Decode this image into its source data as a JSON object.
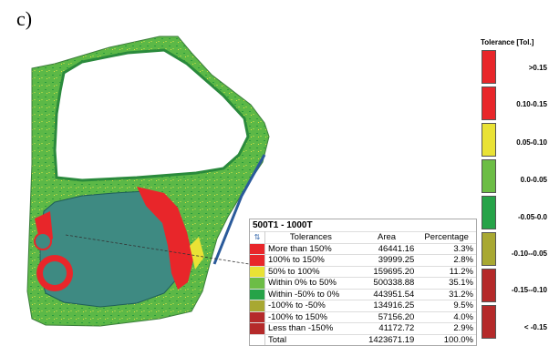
{
  "figure_label": "c)",
  "scale": {
    "title": "Tolerance [Tol.]",
    "bands": [
      {
        "label": ">0.15",
        "color": "#e8262a"
      },
      {
        "label": "0.10-0.15",
        "color": "#e8262a"
      },
      {
        "label": "0.05-0.10",
        "color": "#e9e235"
      },
      {
        "label": "0.0-0.05",
        "color": "#6cbd45"
      },
      {
        "label": "-0.05-0.0",
        "color": "#26a348"
      },
      {
        "label": "-0.10--0.05",
        "color": "#a8a832"
      },
      {
        "label": "-0.15--0.10",
        "color": "#b52a2a"
      },
      {
        "label": "< -0.15",
        "color": "#b52a2a"
      }
    ]
  },
  "stats": {
    "title": "500T1 - 1000T",
    "headers": [
      "Tolerances",
      "Area",
      "Percentage"
    ],
    "rows": [
      {
        "label": "More than 150%",
        "area": "46441.16",
        "pct": "3.3%",
        "color": "#e8262a"
      },
      {
        "label": "100% to 150%",
        "area": "39999.25",
        "pct": "2.8%",
        "color": "#e8262a"
      },
      {
        "label": "50% to 100%",
        "area": "159695.20",
        "pct": "11.2%",
        "color": "#e9e235"
      },
      {
        "label": "Within 0% to 50%",
        "area": "500338.88",
        "pct": "35.1%",
        "color": "#6cbd45"
      },
      {
        "label": "Within -50% to 0%",
        "area": "443951.54",
        "pct": "31.2%",
        "color": "#26a348"
      },
      {
        "label": "-100% to -50%",
        "area": "134916.25",
        "pct": "9.5%",
        "color": "#a8a832"
      },
      {
        "label": "-100% to 150%",
        "area": "57156.20",
        "pct": "4.0%",
        "color": "#b52a2a"
      },
      {
        "label": "Less than -150%",
        "area": "41172.72",
        "pct": "2.9%",
        "color": "#b52a2a"
      }
    ],
    "total": {
      "label": "Total",
      "area": "1423671.19",
      "pct": "100.0%"
    }
  }
}
